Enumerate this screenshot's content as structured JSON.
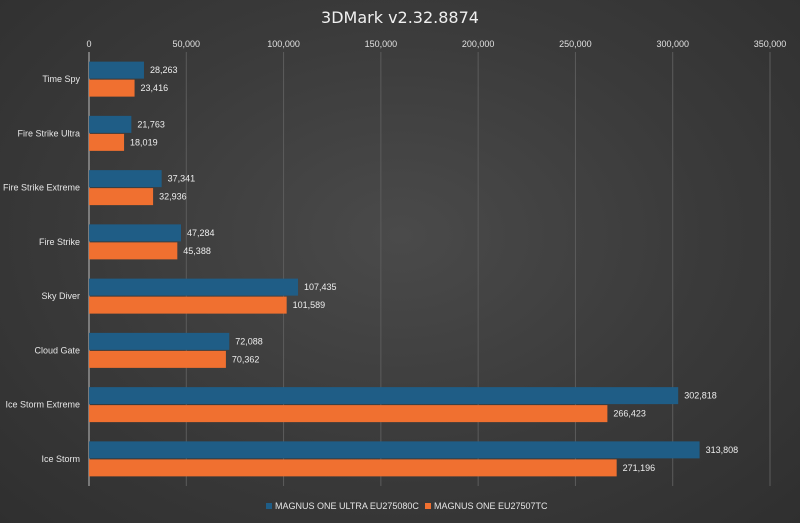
{
  "chart_data": {
    "type": "bar",
    "orientation": "horizontal",
    "title": "3DMark v2.32.8874",
    "categories": [
      "Time Spy",
      "Fire Strike Ultra",
      "Fire Strike Extreme",
      "Fire Strike",
      "Sky Diver",
      "Cloud Gate",
      "Ice Storm Extreme",
      "Ice Storm"
    ],
    "series": [
      {
        "name": "MAGNUS ONE ULTRA EU275080C",
        "color": "#1f5d86",
        "values": [
          28263,
          21763,
          37341,
          47284,
          107435,
          72088,
          302818,
          313808
        ],
        "labels": [
          "28,263",
          "21,763",
          "37,341",
          "47,284",
          "107,435",
          "72,088",
          "302,818",
          "313,808"
        ]
      },
      {
        "name": "MAGNUS ONE EU27507TC",
        "color": "#f07030",
        "values": [
          23416,
          18019,
          32936,
          45388,
          101589,
          70362,
          266423,
          271196
        ],
        "labels": [
          "23,416",
          "18,019",
          "32,936",
          "45,388",
          "101,589",
          "70,362",
          "266,423",
          "271,196"
        ]
      }
    ],
    "xlim": [
      0,
      350000
    ],
    "ticks": [
      0,
      50000,
      100000,
      150000,
      200000,
      250000,
      300000,
      350000
    ],
    "tick_labels": [
      "0",
      "50,000",
      "100,000",
      "150,000",
      "200,000",
      "250,000",
      "300,000",
      "350,000"
    ],
    "axis_position": "top",
    "grid": true,
    "legend": "bottom"
  }
}
